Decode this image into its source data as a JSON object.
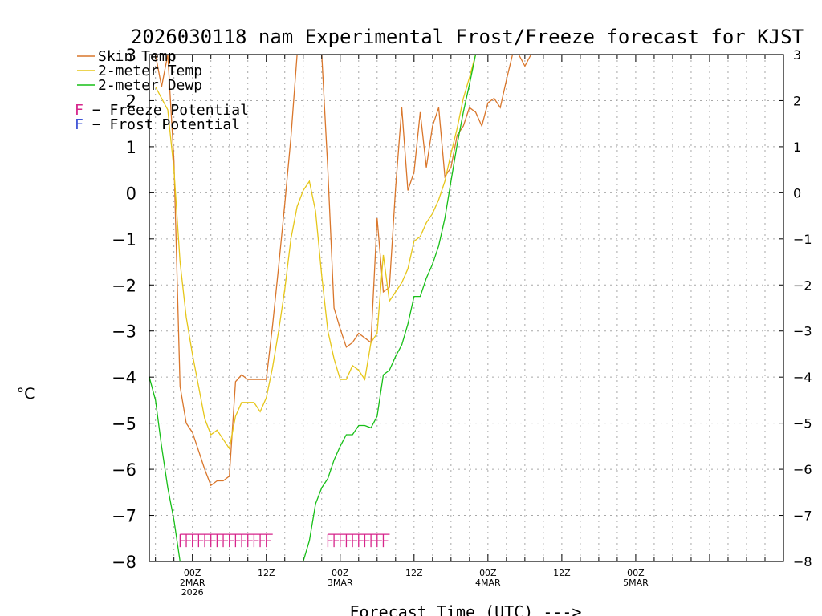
{
  "chart_data": {
    "type": "line",
    "title": "2026030118 nam Experimental Frost/Freeze forecast for KJST",
    "xlabel": "Forecast Time (UTC) --->",
    "ylabel": "°C",
    "ylim": [
      -8,
      3
    ],
    "xlim_hours": [
      -7,
      96
    ],
    "y_ticks": [
      3,
      2,
      1,
      0,
      -1,
      -2,
      -3,
      -4,
      -5,
      -6,
      -7,
      -8
    ],
    "y_tick_labels_left": [
      "3",
      "2",
      "1",
      "0",
      "−1",
      "−2",
      "−3",
      "−4",
      "−5",
      "−6",
      "−7",
      "−8"
    ],
    "y_tick_labels_right": [
      "3",
      "2",
      "1",
      "0",
      "−1",
      "−2",
      "−3",
      "−4",
      "−5",
      "−6",
      "−7",
      "−8"
    ],
    "x_ticks": [
      {
        "hour": 0,
        "lines": [
          "00Z",
          "2MAR",
          "2026"
        ]
      },
      {
        "hour": 12,
        "lines": [
          "12Z"
        ]
      },
      {
        "hour": 24,
        "lines": [
          "00Z",
          "3MAR"
        ]
      },
      {
        "hour": 36,
        "lines": [
          "12Z"
        ]
      },
      {
        "hour": 48,
        "lines": [
          "00Z",
          "4MAR"
        ]
      },
      {
        "hour": 60,
        "lines": [
          "12Z"
        ]
      },
      {
        "hour": 72,
        "lines": [
          "00Z",
          "5MAR"
        ]
      }
    ],
    "legend": {
      "placement": "top-left",
      "entries": [
        {
          "label": "Skin Temp",
          "color": "#d9762b",
          "kind": "line"
        },
        {
          "label": "2-meter Temp",
          "color": "#e6c619",
          "kind": "line"
        },
        {
          "label": "2-meter Dewp",
          "color": "#17bf17",
          "kind": "line"
        }
      ],
      "markers": [
        {
          "symbol": "F",
          "text": " − Freeze Potential",
          "color": "#d6248b"
        },
        {
          "symbol": "F",
          "text": " − Frost Potential",
          "color": "#3f54d6"
        }
      ]
    },
    "series": [
      {
        "name": "Skin Temp",
        "color": "#d9762b",
        "points": [
          [
            -6,
            3.0
          ],
          [
            -5,
            2.3
          ],
          [
            -4,
            3.0
          ],
          [
            -3,
            0.7
          ],
          [
            -2,
            -4.2
          ],
          [
            -1,
            -5.0
          ],
          [
            0,
            -5.2
          ],
          [
            1,
            -5.6
          ],
          [
            2,
            -6.0
          ],
          [
            3,
            -6.35
          ],
          [
            4,
            -6.25
          ],
          [
            5,
            -6.25
          ],
          [
            6,
            -6.15
          ],
          [
            7,
            -4.1
          ],
          [
            8,
            -3.95
          ],
          [
            9,
            -4.05
          ],
          [
            10,
            -4.05
          ],
          [
            11,
            -4.05
          ],
          [
            12,
            -4.05
          ],
          [
            13,
            -2.9
          ],
          [
            14,
            -1.6
          ],
          [
            15,
            -0.25
          ],
          [
            16,
            1.2
          ],
          [
            17,
            3.0
          ],
          [
            21,
            3.0
          ],
          [
            22,
            0.5
          ],
          [
            23,
            -2.5
          ],
          [
            24,
            -2.95
          ],
          [
            25,
            -3.35
          ],
          [
            26,
            -3.25
          ],
          [
            27,
            -3.05
          ],
          [
            28,
            -3.15
          ],
          [
            29,
            -3.25
          ],
          [
            30,
            -0.55
          ],
          [
            31,
            -2.15
          ],
          [
            32,
            -2.05
          ],
          [
            33,
            0.1
          ],
          [
            34,
            1.85
          ],
          [
            35,
            0.05
          ],
          [
            36,
            0.45
          ],
          [
            37,
            1.75
          ],
          [
            38,
            0.55
          ],
          [
            39,
            1.45
          ],
          [
            40,
            1.85
          ],
          [
            41,
            0.35
          ],
          [
            42,
            0.55
          ],
          [
            43,
            1.25
          ],
          [
            44,
            1.45
          ],
          [
            45,
            1.85
          ],
          [
            46,
            1.75
          ],
          [
            47,
            1.45
          ],
          [
            48,
            1.95
          ],
          [
            49,
            2.05
          ],
          [
            50,
            1.85
          ],
          [
            51,
            2.45
          ],
          [
            52,
            3.0
          ],
          [
            53,
            3.0
          ],
          [
            54,
            2.75
          ],
          [
            55,
            3.0
          ]
        ]
      },
      {
        "name": "2-meter Temp",
        "color": "#e6c619",
        "points": [
          [
            -6,
            2.3
          ],
          [
            -5,
            2.05
          ],
          [
            -4,
            1.8
          ],
          [
            -3,
            0.5
          ],
          [
            -2,
            -1.5
          ],
          [
            -1,
            -2.7
          ],
          [
            0,
            -3.5
          ],
          [
            1,
            -4.2
          ],
          [
            2,
            -4.9
          ],
          [
            3,
            -5.25
          ],
          [
            4,
            -5.15
          ],
          [
            5,
            -5.35
          ],
          [
            6,
            -5.55
          ],
          [
            7,
            -4.85
          ],
          [
            8,
            -4.55
          ],
          [
            9,
            -4.55
          ],
          [
            10,
            -4.55
          ],
          [
            11,
            -4.75
          ],
          [
            12,
            -4.45
          ],
          [
            13,
            -3.8
          ],
          [
            14,
            -3.0
          ],
          [
            15,
            -2.1
          ],
          [
            16,
            -1.0
          ],
          [
            17,
            -0.3
          ],
          [
            18,
            0.05
          ],
          [
            19,
            0.25
          ],
          [
            20,
            -0.4
          ],
          [
            21,
            -1.8
          ],
          [
            22,
            -3.0
          ],
          [
            23,
            -3.6
          ],
          [
            24,
            -4.05
          ],
          [
            25,
            -4.05
          ],
          [
            26,
            -3.75
          ],
          [
            27,
            -3.85
          ],
          [
            28,
            -4.05
          ],
          [
            29,
            -3.25
          ],
          [
            30,
            -3.05
          ],
          [
            31,
            -1.35
          ],
          [
            32,
            -2.35
          ],
          [
            33,
            -2.15
          ],
          [
            34,
            -1.95
          ],
          [
            35,
            -1.65
          ],
          [
            36,
            -1.05
          ],
          [
            37,
            -0.95
          ],
          [
            38,
            -0.65
          ],
          [
            39,
            -0.45
          ],
          [
            40,
            -0.15
          ],
          [
            41,
            0.25
          ],
          [
            42,
            0.85
          ],
          [
            43,
            1.4
          ],
          [
            44,
            2.05
          ],
          [
            45,
            2.5
          ],
          [
            46,
            3.0
          ]
        ]
      },
      {
        "name": "2-meter Dewp",
        "color": "#17bf17",
        "points": [
          [
            -7,
            -4.0
          ],
          [
            -6,
            -4.5
          ],
          [
            -5,
            -5.5
          ],
          [
            -4,
            -6.4
          ],
          [
            -3,
            -7.1
          ],
          [
            -2,
            -8.0
          ],
          [
            18,
            -8.0
          ],
          [
            19,
            -7.55
          ],
          [
            20,
            -6.75
          ],
          [
            21,
            -6.4
          ],
          [
            22,
            -6.2
          ],
          [
            23,
            -5.8
          ],
          [
            24,
            -5.5
          ],
          [
            25,
            -5.25
          ],
          [
            26,
            -5.25
          ],
          [
            27,
            -5.05
          ],
          [
            28,
            -5.05
          ],
          [
            29,
            -5.1
          ],
          [
            30,
            -4.85
          ],
          [
            31,
            -3.95
          ],
          [
            32,
            -3.85
          ],
          [
            33,
            -3.55
          ],
          [
            34,
            -3.3
          ],
          [
            35,
            -2.85
          ],
          [
            36,
            -2.25
          ],
          [
            37,
            -2.25
          ],
          [
            38,
            -1.85
          ],
          [
            39,
            -1.55
          ],
          [
            40,
            -1.15
          ],
          [
            41,
            -0.55
          ],
          [
            42,
            0.25
          ],
          [
            43,
            1.05
          ],
          [
            44,
            1.75
          ],
          [
            45,
            2.35
          ],
          [
            46,
            3.0
          ]
        ]
      }
    ],
    "freeze_potential": {
      "symbol": "F",
      "color": "#d6248b",
      "value": -7.55,
      "runs": [
        {
          "hours": [
            -2,
            -1,
            0,
            1,
            2,
            3,
            4,
            5,
            6,
            7,
            8,
            9,
            10,
            11,
            12
          ]
        },
        {
          "hours": [
            22,
            23,
            24,
            25,
            26,
            27,
            28,
            29,
            30,
            31
          ]
        }
      ]
    },
    "frost_potential": {
      "symbol": "F",
      "color": "#3f54d6",
      "runs": []
    }
  }
}
